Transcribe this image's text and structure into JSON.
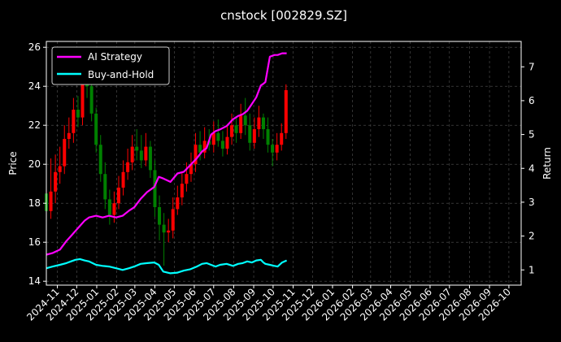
{
  "chart_data": {
    "type": "line",
    "title": "cnstock [002829.SZ]",
    "ylabel": "Price",
    "y2label": "Return",
    "ylim": [
      13.8,
      26.3
    ],
    "y2lim": [
      0.55,
      7.75
    ],
    "yticks": [
      14,
      16,
      18,
      20,
      22,
      24,
      26
    ],
    "y2ticks": [
      1,
      2,
      3,
      4,
      5,
      6,
      7
    ],
    "x_range": [
      "2024-10-15",
      "2026-10-20"
    ],
    "xticks": [
      "2024-11",
      "2024-12",
      "2025-01",
      "2025-02",
      "2025-03",
      "2025-04",
      "2025-05",
      "2025-06",
      "2025-07",
      "2025-08",
      "2025-09",
      "2025-10",
      "2025-11",
      "2025-12",
      "2026-01",
      "2026-02",
      "2026-03",
      "2026-04",
      "2026-05",
      "2026-06",
      "2026-07",
      "2026-08",
      "2026-09",
      "2026-10"
    ],
    "grid": true,
    "legend_position": "top-left",
    "candles": {
      "up_color": "#ff0000",
      "down_color": "#008000",
      "x": [
        "2024-10-15",
        "2024-10-22",
        "2024-10-29",
        "2024-11-05",
        "2024-11-12",
        "2024-11-19",
        "2024-11-26",
        "2024-12-03",
        "2024-12-10",
        "2024-12-17",
        "2024-12-24",
        "2024-12-31",
        "2025-01-07",
        "2025-01-14",
        "2025-01-21",
        "2025-01-28",
        "2025-02-04",
        "2025-02-11",
        "2025-02-18",
        "2025-02-25",
        "2025-03-04",
        "2025-03-11",
        "2025-03-18",
        "2025-03-25",
        "2025-04-01",
        "2025-04-08",
        "2025-04-15",
        "2025-04-22",
        "2025-04-29",
        "2025-05-06",
        "2025-05-13",
        "2025-05-20",
        "2025-05-27",
        "2025-06-03",
        "2025-06-10",
        "2025-06-17",
        "2025-06-24",
        "2025-07-01",
        "2025-07-08",
        "2025-07-15",
        "2025-07-22",
        "2025-07-29",
        "2025-08-05",
        "2025-08-12",
        "2025-08-19",
        "2025-08-26",
        "2025-09-02",
        "2025-09-09",
        "2025-09-16",
        "2025-09-23",
        "2025-09-30",
        "2025-10-07",
        "2025-10-14",
        "2025-10-21"
      ],
      "open": [
        18.5,
        17.6,
        18.6,
        19.6,
        19.9,
        21.3,
        21.6,
        22.8,
        22.4,
        24.2,
        24.0,
        22.6,
        21.0,
        19.5,
        18.2,
        17.4,
        18.0,
        18.8,
        19.6,
        20.1,
        20.9,
        20.7,
        20.2,
        20.9,
        19.7,
        17.8,
        16.9,
        16.5,
        16.6,
        17.7,
        18.3,
        19.0,
        19.5,
        20.0,
        21.0,
        20.6,
        21.2,
        21.0,
        21.6,
        21.2,
        20.8,
        21.4,
        22.0,
        21.6,
        22.5,
        22.0,
        21.1,
        21.8,
        22.4,
        21.8,
        21.0,
        20.6,
        21.0,
        21.6
      ],
      "close": [
        17.6,
        18.6,
        19.6,
        19.9,
        21.3,
        21.6,
        22.8,
        22.4,
        24.2,
        24.0,
        22.6,
        21.0,
        19.5,
        18.2,
        17.4,
        18.0,
        18.8,
        19.6,
        20.1,
        20.9,
        20.7,
        20.2,
        20.9,
        19.7,
        17.8,
        16.9,
        16.5,
        16.6,
        17.7,
        18.3,
        19.0,
        19.5,
        20.0,
        21.0,
        20.6,
        21.2,
        21.0,
        21.6,
        21.2,
        20.8,
        21.4,
        22.0,
        21.6,
        22.5,
        22.0,
        21.1,
        21.8,
        22.4,
        21.8,
        21.0,
        20.6,
        21.0,
        21.6,
        23.8
      ],
      "high": [
        19.8,
        20.3,
        20.5,
        20.9,
        22.0,
        22.4,
        23.4,
        23.5,
        24.8,
        24.9,
        24.5,
        22.9,
        21.5,
        20.1,
        18.7,
        18.6,
        19.4,
        20.2,
        20.8,
        21.5,
        21.8,
        21.5,
        21.6,
        21.2,
        20.2,
        18.4,
        17.5,
        17.2,
        18.3,
        18.9,
        19.6,
        20.1,
        20.6,
        21.6,
        21.7,
        21.9,
        21.8,
        22.2,
        22.3,
        21.7,
        22.0,
        22.6,
        22.4,
        23.1,
        23.4,
        22.6,
        22.4,
        23.0,
        22.6,
        22.4,
        21.3,
        21.6,
        22.1,
        24.1
      ],
      "low": [
        17.0,
        17.2,
        18.0,
        19.0,
        19.5,
        20.8,
        21.1,
        21.9,
        22.0,
        23.4,
        22.2,
        20.6,
        19.1,
        17.7,
        16.9,
        17.0,
        17.7,
        18.4,
        19.2,
        19.7,
        20.2,
        19.8,
        19.9,
        19.3,
        17.3,
        16.1,
        14.8,
        16.0,
        16.2,
        17.4,
        17.9,
        18.6,
        19.1,
        19.6,
        20.2,
        20.3,
        20.7,
        20.6,
        20.9,
        20.4,
        20.5,
        21.0,
        21.1,
        21.3,
        21.5,
        20.7,
        20.8,
        21.4,
        21.3,
        20.6,
        19.9,
        20.2,
        20.7,
        21.3
      ]
    },
    "series": [
      {
        "name": "AI Strategy",
        "color": "#ff00ff",
        "axis": "right",
        "x": [
          "2024-10-15",
          "2024-10-25",
          "2024-11-05",
          "2024-11-15",
          "2024-11-22",
          "2024-11-29",
          "2024-12-06",
          "2024-12-13",
          "2024-12-20",
          "2024-12-31",
          "2025-01-10",
          "2025-01-20",
          "2025-01-31",
          "2025-02-10",
          "2025-02-20",
          "2025-02-28",
          "2025-03-10",
          "2025-03-20",
          "2025-03-31",
          "2025-04-07",
          "2025-04-14",
          "2025-04-25",
          "2025-05-06",
          "2025-05-16",
          "2025-05-26",
          "2025-06-05",
          "2025-06-13",
          "2025-06-20",
          "2025-06-27",
          "2025-07-04",
          "2025-07-11",
          "2025-07-21",
          "2025-07-31",
          "2025-08-08",
          "2025-08-15",
          "2025-08-22",
          "2025-08-29",
          "2025-09-05",
          "2025-09-12",
          "2025-09-16",
          "2025-09-19",
          "2025-09-26",
          "2025-10-03",
          "2025-10-08",
          "2025-10-15",
          "2025-10-22"
        ],
        "values": [
          1.45,
          1.5,
          1.6,
          1.85,
          2.0,
          2.15,
          2.3,
          2.45,
          2.55,
          2.6,
          2.55,
          2.6,
          2.55,
          2.6,
          2.75,
          2.85,
          3.1,
          3.3,
          3.45,
          3.75,
          3.7,
          3.6,
          3.85,
          3.9,
          4.1,
          4.3,
          4.5,
          4.6,
          5.0,
          5.1,
          5.15,
          5.25,
          5.45,
          5.55,
          5.6,
          5.7,
          5.9,
          6.1,
          6.45,
          6.5,
          6.55,
          7.3,
          7.35,
          7.35,
          7.4,
          7.4
        ]
      },
      {
        "name": "Buy-and-Hold",
        "color": "#00ffff",
        "axis": "right",
        "x": [
          "2024-10-15",
          "2024-10-25",
          "2024-11-05",
          "2024-11-15",
          "2024-11-22",
          "2024-11-29",
          "2024-12-06",
          "2024-12-13",
          "2024-12-20",
          "2024-12-31",
          "2025-01-10",
          "2025-01-20",
          "2025-01-31",
          "2025-02-10",
          "2025-02-20",
          "2025-02-28",
          "2025-03-10",
          "2025-03-20",
          "2025-03-31",
          "2025-04-07",
          "2025-04-14",
          "2025-04-25",
          "2025-05-06",
          "2025-05-16",
          "2025-05-26",
          "2025-06-05",
          "2025-06-13",
          "2025-06-20",
          "2025-06-27",
          "2025-07-04",
          "2025-07-11",
          "2025-07-21",
          "2025-07-31",
          "2025-08-08",
          "2025-08-15",
          "2025-08-22",
          "2025-08-29",
          "2025-09-05",
          "2025-09-12",
          "2025-09-16",
          "2025-09-19",
          "2025-09-26",
          "2025-10-03",
          "2025-10-08",
          "2025-10-15",
          "2025-10-22"
        ],
        "values": [
          1.05,
          1.1,
          1.15,
          1.2,
          1.25,
          1.3,
          1.32,
          1.28,
          1.25,
          1.15,
          1.12,
          1.1,
          1.05,
          1.0,
          1.05,
          1.1,
          1.18,
          1.2,
          1.22,
          1.15,
          0.95,
          0.9,
          0.92,
          0.98,
          1.02,
          1.1,
          1.18,
          1.2,
          1.15,
          1.1,
          1.15,
          1.18,
          1.12,
          1.18,
          1.2,
          1.25,
          1.22,
          1.28,
          1.3,
          1.22,
          1.18,
          1.15,
          1.12,
          1.1,
          1.22,
          1.28
        ]
      }
    ]
  }
}
